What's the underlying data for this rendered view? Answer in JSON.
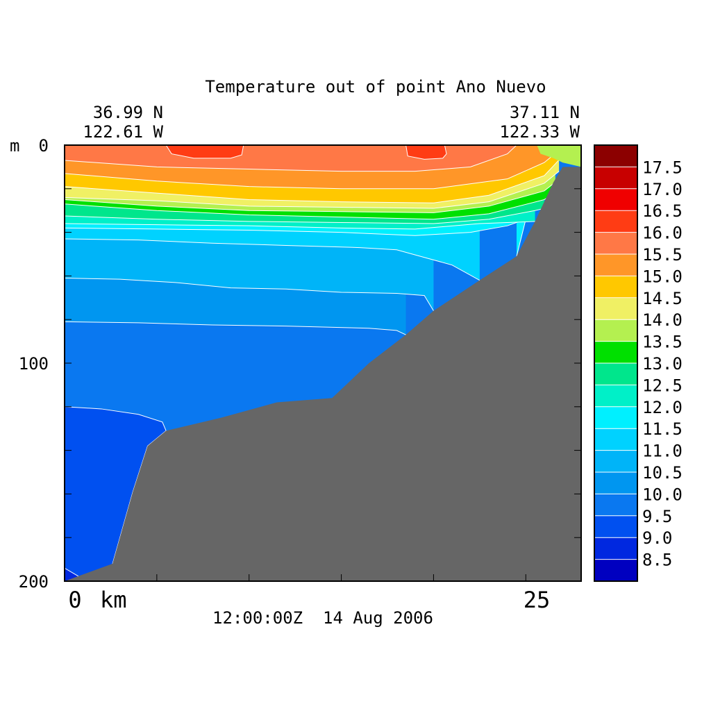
{
  "chart_data": {
    "type": "heatmap",
    "title": "Temperature out of point Ano Nuevo",
    "start_coord": {
      "lat": "36.99 N",
      "lon": "122.61 W"
    },
    "end_coord": {
      "lat": "37.11 N",
      "lon": "122.33 W"
    },
    "timestamp": "12:00:00Z  14 Aug 2006",
    "x_axis": {
      "label": "km",
      "range": [
        0,
        28
      ],
      "tick_labels": [
        "0",
        "25"
      ],
      "ticks": [
        0,
        5,
        10,
        15,
        20,
        25
      ]
    },
    "y_axis": {
      "unit": "m",
      "range": [
        0,
        200
      ],
      "inverted": true,
      "tick_labels": [
        "0",
        "100",
        "200"
      ],
      "ticks": [
        0,
        20,
        40,
        60,
        80,
        100,
        120,
        140,
        160,
        180,
        200
      ]
    },
    "colorbar": {
      "levels": [
        "8.5",
        "9.0",
        "9.5",
        "10.0",
        "10.5",
        "11.0",
        "11.5",
        "12.0",
        "12.5",
        "13.0",
        "13.5",
        "14.0",
        "14.5",
        "15.0",
        "15.5",
        "16.0",
        "16.5",
        "17.0",
        "17.5"
      ],
      "colors": [
        "#0000c0",
        "#0028e0",
        "#0050f0",
        "#0a78f0",
        "#0096f0",
        "#00b4f8",
        "#00d2ff",
        "#00f0ff",
        "#00f0c8",
        "#00e68c",
        "#00e000",
        "#b4f050",
        "#f0f064",
        "#ffc800",
        "#ff9628",
        "#ff7846",
        "#ff3c14",
        "#f00000",
        "#c80000",
        "#8c0000"
      ]
    },
    "bottom_color": "#666666",
    "bathymetry": [
      [
        0,
        200
      ],
      [
        2.6,
        192
      ],
      [
        3.7,
        159
      ],
      [
        4.5,
        138
      ],
      [
        5.5,
        131
      ],
      [
        8.5,
        125
      ],
      [
        11.5,
        118
      ],
      [
        14.5,
        116
      ],
      [
        16.5,
        100
      ],
      [
        18.5,
        87
      ],
      [
        20,
        76
      ],
      [
        22.5,
        62
      ],
      [
        24.5,
        51
      ],
      [
        25.5,
        35
      ],
      [
        26.5,
        17
      ],
      [
        27,
        10
      ],
      [
        28,
        10
      ]
    ],
    "layers": [
      {
        "t": "10.0",
        "pts": [
          [
            0,
            81
          ],
          [
            4,
            81.5
          ],
          [
            8,
            82.5
          ],
          [
            12,
            83
          ],
          [
            16.5,
            84
          ],
          [
            18,
            85
          ],
          [
            18.5,
            87
          ]
        ]
      },
      {
        "t": "10.5",
        "pts": [
          [
            0,
            61
          ],
          [
            3,
            61.5
          ],
          [
            6,
            63
          ],
          [
            9,
            65.5
          ],
          [
            12,
            66
          ],
          [
            15,
            67.5
          ],
          [
            18,
            68
          ],
          [
            19.5,
            69
          ],
          [
            20,
            76
          ]
        ]
      },
      {
        "t": "11.0",
        "pts": [
          [
            0,
            43
          ],
          [
            4,
            43.5
          ],
          [
            8,
            45
          ],
          [
            12,
            46
          ],
          [
            16,
            47
          ],
          [
            18,
            48
          ],
          [
            21,
            55
          ],
          [
            22.5,
            62
          ]
        ]
      },
      {
        "t": "11.5",
        "pts": [
          [
            0,
            38
          ],
          [
            5,
            38.5
          ],
          [
            10,
            39
          ],
          [
            15,
            40
          ],
          [
            19,
            41.5
          ],
          [
            22,
            40
          ],
          [
            24,
            37
          ],
          [
            25,
            34
          ],
          [
            24.5,
            51
          ]
        ]
      },
      {
        "t": "12.0",
        "pts": [
          [
            0,
            36
          ],
          [
            5,
            36.5
          ],
          [
            10,
            37
          ],
          [
            15,
            38
          ],
          [
            19,
            38.5
          ],
          [
            22.5,
            36
          ],
          [
            25.5,
            35
          ]
        ]
      },
      {
        "t": "12.5",
        "pts": [
          [
            0,
            32.5
          ],
          [
            5,
            34
          ],
          [
            10,
            35
          ],
          [
            15,
            35.5
          ],
          [
            20,
            36
          ],
          [
            23,
            34
          ],
          [
            25.5,
            30
          ],
          [
            26,
            29
          ]
        ]
      },
      {
        "t": "13.0",
        "pts": [
          [
            0,
            27
          ],
          [
            5,
            30
          ],
          [
            10,
            32
          ],
          [
            15,
            33
          ],
          [
            20,
            34
          ],
          [
            23,
            31.5
          ],
          [
            26,
            25
          ],
          [
            26.5,
            22
          ]
        ]
      },
      {
        "t": "13.5",
        "pts": [
          [
            0,
            25
          ],
          [
            5,
            28
          ],
          [
            10,
            30
          ],
          [
            15,
            30.5
          ],
          [
            20,
            31
          ],
          [
            23,
            28
          ],
          [
            26,
            21
          ],
          [
            26.6,
            17
          ]
        ]
      },
      {
        "t": "14.0",
        "pts": [
          [
            0,
            24
          ],
          [
            5,
            25.5
          ],
          [
            10,
            28
          ],
          [
            15,
            28.5
          ],
          [
            20,
            29
          ],
          [
            23,
            26
          ],
          [
            26,
            17.5
          ],
          [
            26.8,
            12
          ]
        ]
      },
      {
        "t": "14.5",
        "pts": [
          [
            0,
            19
          ],
          [
            5,
            22
          ],
          [
            10,
            25
          ],
          [
            15,
            26
          ],
          [
            20,
            26.5
          ],
          [
            23,
            23
          ],
          [
            26,
            14
          ],
          [
            27,
            5
          ]
        ]
      },
      {
        "t": "15.0",
        "pts": [
          [
            0,
            13
          ],
          [
            5,
            16.5
          ],
          [
            10,
            19
          ],
          [
            15,
            20
          ],
          [
            20,
            20
          ],
          [
            24,
            15.5
          ],
          [
            26,
            8
          ],
          [
            27,
            1
          ]
        ]
      },
      {
        "t": "15.5",
        "pts": [
          [
            0,
            7
          ],
          [
            5,
            10
          ],
          [
            10,
            11
          ],
          [
            15,
            12
          ],
          [
            19,
            12
          ],
          [
            22,
            10
          ],
          [
            24,
            4
          ],
          [
            24.5,
            0
          ]
        ]
      }
    ],
    "warm_cores": [
      {
        "t": "16.0",
        "pts": [
          [
            5.5,
            0
          ],
          [
            5.8,
            4
          ],
          [
            7,
            6
          ],
          [
            9,
            6
          ],
          [
            9.6,
            4.5
          ],
          [
            9.7,
            0
          ]
        ]
      },
      {
        "t": "16.0",
        "pts": [
          [
            18.5,
            0
          ],
          [
            18.6,
            5
          ],
          [
            19.5,
            6.5
          ],
          [
            20.5,
            6
          ],
          [
            20.7,
            4
          ],
          [
            20.6,
            0
          ]
        ]
      }
    ],
    "cold_cores": [
      {
        "t": "9.0",
        "pts": [
          [
            0,
            120
          ],
          [
            2,
            121
          ],
          [
            4,
            123.5
          ],
          [
            5.3,
            127
          ],
          [
            5.5,
            131
          ],
          [
            4.5,
            138
          ],
          [
            3.7,
            159
          ],
          [
            2.6,
            192
          ],
          [
            2.6,
            200
          ],
          [
            0,
            200
          ]
        ]
      },
      {
        "t": "8.5",
        "pts": [
          [
            0,
            194
          ],
          [
            0.6,
            197
          ],
          [
            1.2,
            200
          ],
          [
            0,
            200
          ]
        ]
      }
    ],
    "surface_patch": {
      "t": "13.5",
      "pts": [
        [
          25.6,
          0
        ],
        [
          25.8,
          4
        ],
        [
          26.5,
          6
        ],
        [
          27,
          8
        ],
        [
          28,
          10
        ],
        [
          28,
          0
        ]
      ]
    }
  }
}
